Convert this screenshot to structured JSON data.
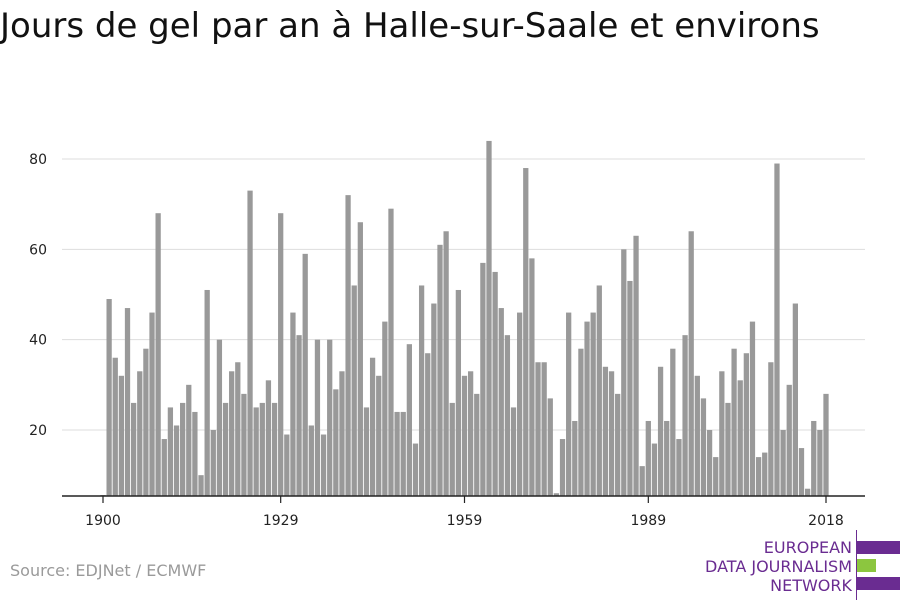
{
  "chart_data": {
    "type": "bar",
    "title": "Jours de gel par an à Halle-sur-Saale et environs",
    "xlabel": "",
    "ylabel": "",
    "years": [
      1900,
      2018
    ],
    "values": [
      4,
      49,
      36,
      32,
      47,
      26,
      33,
      38,
      46,
      68,
      18,
      25,
      21,
      26,
      30,
      24,
      10,
      51,
      20,
      40,
      26,
      33,
      35,
      28,
      73,
      25,
      26,
      31,
      26,
      68,
      19,
      46,
      41,
      59,
      21,
      40,
      19,
      40,
      29,
      33,
      72,
      52,
      66,
      25,
      36,
      32,
      44,
      69,
      24,
      24,
      39,
      17,
      52,
      37,
      48,
      61,
      64,
      26,
      51,
      32,
      33,
      28,
      57,
      84,
      55,
      47,
      41,
      25,
      46,
      78,
      58,
      35,
      35,
      27,
      6,
      18,
      46,
      22,
      38,
      44,
      46,
      52,
      34,
      33,
      28,
      60,
      53,
      63,
      12,
      22,
      17,
      34,
      22,
      38,
      18,
      41,
      64,
      32,
      27,
      20,
      14,
      33,
      26,
      38,
      31,
      37,
      44,
      14,
      15,
      35,
      79,
      20,
      30,
      48,
      16,
      7,
      22,
      20,
      28
    ],
    "x_ticks": [
      "1900",
      "1929",
      "1959",
      "1989",
      "2018"
    ],
    "y_ticks": [
      "20",
      "40",
      "60",
      "80"
    ],
    "ylim": [
      5,
      88
    ],
    "grid": true,
    "bar_color": "#999999",
    "grid_color": "#dddddd",
    "axis_color": "#222222"
  },
  "source": "Source: EDJNet / ECMWF",
  "logo": {
    "lines": [
      "EUROPEAN",
      "DATA JOURNALISM",
      "NETWORK"
    ],
    "purple": "#6a2c91",
    "green": "#8cc63f"
  }
}
